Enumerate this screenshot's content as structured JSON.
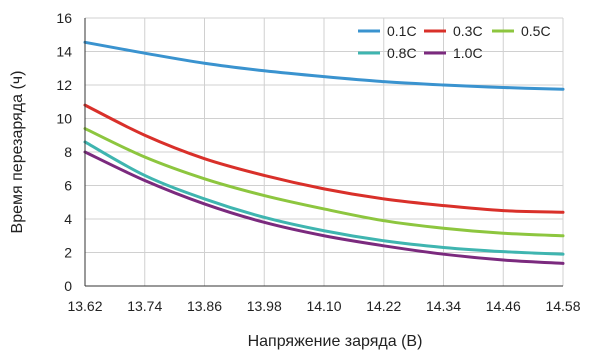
{
  "chart_data": {
    "type": "line",
    "title": "",
    "xlabel": "Напряжение заряда (В)",
    "ylabel": "Время перезаряда (ч)",
    "xlim": [
      13.62,
      14.58
    ],
    "ylim": [
      0,
      16
    ],
    "xticks": [
      "13.62",
      "13.74",
      "13.86",
      "13.98",
      "14.10",
      "14.22",
      "14.34",
      "14.46",
      "14.58"
    ],
    "yticks": [
      "0",
      "2",
      "4",
      "6",
      "8",
      "10",
      "12",
      "14",
      "16"
    ],
    "grid": true,
    "legend_position": "top-right",
    "x": [
      13.62,
      13.74,
      13.86,
      13.98,
      14.1,
      14.22,
      14.34,
      14.46,
      14.58
    ],
    "series": [
      {
        "name": "0.1C",
        "color": "#3a93cf",
        "values": [
          14.55,
          13.9,
          13.3,
          12.85,
          12.5,
          12.2,
          12.0,
          11.85,
          11.75
        ]
      },
      {
        "name": "0.3C",
        "color": "#d9302a",
        "values": [
          10.8,
          9.0,
          7.6,
          6.6,
          5.8,
          5.2,
          4.8,
          4.5,
          4.4
        ]
      },
      {
        "name": "0.5C",
        "color": "#8dc63f",
        "values": [
          9.4,
          7.7,
          6.4,
          5.4,
          4.6,
          3.9,
          3.45,
          3.15,
          3.0
        ]
      },
      {
        "name": "0.8C",
        "color": "#3fb5b0",
        "values": [
          8.6,
          6.6,
          5.2,
          4.1,
          3.3,
          2.7,
          2.3,
          2.05,
          1.9
        ]
      },
      {
        "name": "1.0C",
        "color": "#7b2a7e",
        "values": [
          8.0,
          6.3,
          4.9,
          3.8,
          3.0,
          2.4,
          1.9,
          1.55,
          1.35
        ]
      }
    ]
  }
}
